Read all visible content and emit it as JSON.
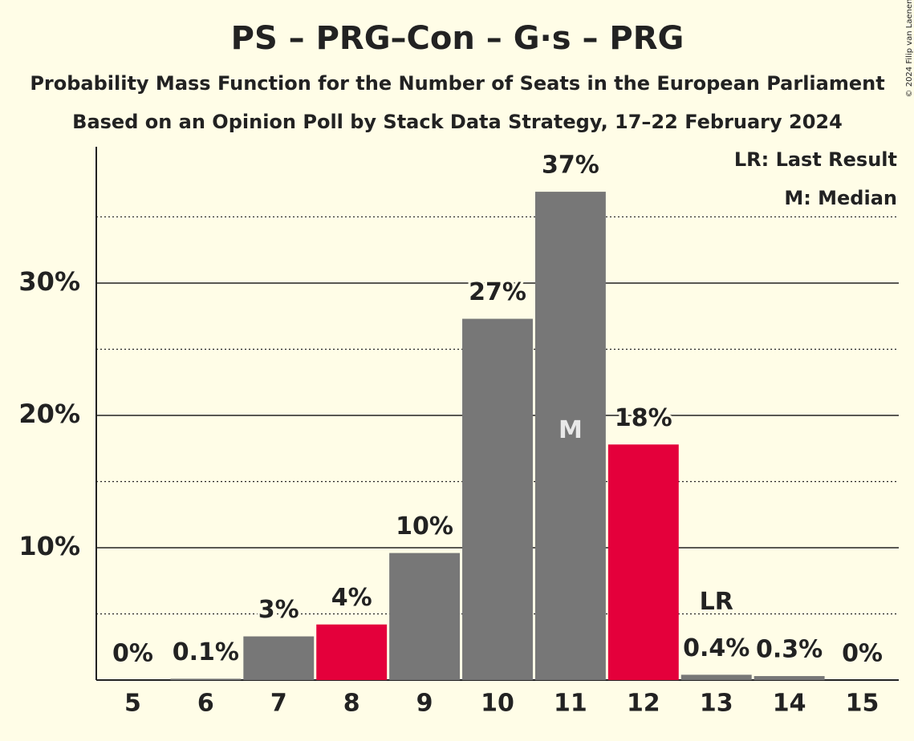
{
  "chart_data": {
    "type": "bar",
    "title": "PS – PRG–Con – G·s – PRG",
    "subtitle": "Probability Mass Function for the Number of Seats in the European Parliament",
    "source": "Based on an Opinion Poll by Stack Data Strategy, 17–22 February 2024",
    "copyright": "© 2024 Filip van Laenen",
    "categories": [
      "5",
      "6",
      "7",
      "8",
      "9",
      "10",
      "11",
      "12",
      "13",
      "14",
      "15"
    ],
    "values": [
      0,
      0.1,
      3.3,
      4.2,
      9.6,
      27.3,
      36.9,
      17.8,
      0.4,
      0.3,
      0
    ],
    "value_labels": [
      "0%",
      "0.1%",
      "3%",
      "4%",
      "10%",
      "27%",
      "37%",
      "18%",
      "0.4%",
      "0.3%",
      "0%"
    ],
    "colors": [
      "#777777",
      "#777777",
      "#777777",
      "#e4003b",
      "#777777",
      "#777777",
      "#777777",
      "#e4003b",
      "#777777",
      "#777777",
      "#777777"
    ],
    "ylim": [
      0,
      40.3
    ],
    "yticks": [
      {
        "value": 10,
        "label": "10%"
      },
      {
        "value": 20,
        "label": "20%"
      },
      {
        "value": 30,
        "label": "30%"
      }
    ],
    "minor_yticks": [
      5,
      15,
      25,
      35
    ],
    "last_result": {
      "label": "LR",
      "category": "13"
    },
    "median": {
      "label": "M",
      "category": "11"
    },
    "legend": [
      "LR: Last Result",
      "M: Median"
    ]
  }
}
